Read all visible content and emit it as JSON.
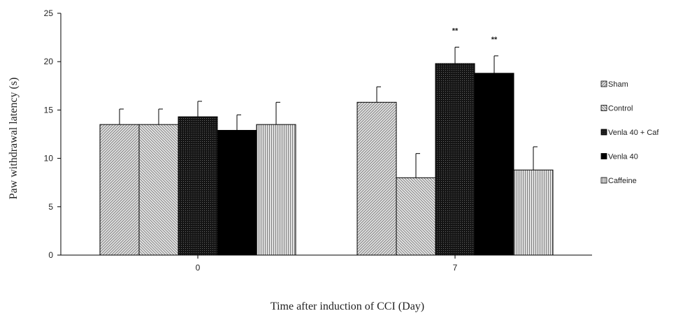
{
  "chart_data": {
    "type": "bar",
    "xlabel": "Time  after  induction  of  CCI (Day)",
    "ylabel": "Paw  withdrawal  latency  (s)",
    "ylim": [
      0,
      25
    ],
    "yticks": [
      0,
      5,
      10,
      15,
      20,
      25
    ],
    "categories": [
      "0",
      "7"
    ],
    "series": [
      {
        "name": "Sham",
        "values": [
          13.5,
          15.8
        ],
        "errors": [
          1.6,
          1.6
        ],
        "pattern": "diag-right",
        "color": "#bdbdbd"
      },
      {
        "name": "Control",
        "values": [
          13.5,
          8.0
        ],
        "errors": [
          1.6,
          2.5
        ],
        "pattern": "diag-left",
        "color": "#c8c8c8"
      },
      {
        "name": "Venla 40 + Caf",
        "values": [
          14.3,
          19.8
        ],
        "errors": [
          1.6,
          1.7
        ],
        "pattern": "dots",
        "color": "#1a1a1a"
      },
      {
        "name": "Venla 40",
        "values": [
          12.9,
          18.8
        ],
        "errors": [
          1.6,
          1.8
        ],
        "pattern": "solid",
        "color": "#000000"
      },
      {
        "name": "Caffeine",
        "values": [
          13.5,
          8.8
        ],
        "errors": [
          2.3,
          2.4
        ],
        "pattern": "vertical",
        "color": "#b5b5b5"
      }
    ],
    "annotations": [
      {
        "category": "7",
        "series": "Venla 40 + Caf",
        "text": "**"
      },
      {
        "category": "7",
        "series": "Venla 40",
        "text": "**"
      }
    ],
    "grid": false,
    "legend": "right"
  }
}
